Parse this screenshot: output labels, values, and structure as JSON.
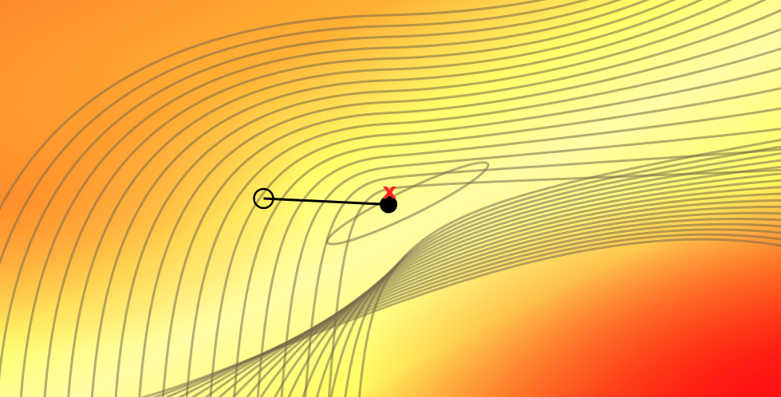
{
  "chart_data": {
    "type": "contour",
    "title": "",
    "xlabel": "",
    "ylabel": "",
    "xlim": [
      -4,
      4
    ],
    "ylim": [
      -2,
      2
    ],
    "grid": false,
    "colormap": [
      "#fffa9e",
      "#ffff55",
      "#ffd040",
      "#ffa030",
      "#ff7a25",
      "#ff2a15"
    ],
    "contour_color": "#7a6a4a",
    "path": [
      {
        "name": "start",
        "x": -1.3,
        "y": 0.0,
        "marker": "open-circle"
      },
      {
        "name": "end",
        "x": -0.02,
        "y": -0.06,
        "marker": "filled-circle"
      }
    ],
    "optimum": {
      "x": -0.01,
      "y": 0.08,
      "marker": "x",
      "color": "#ff2020",
      "label": "x"
    }
  }
}
